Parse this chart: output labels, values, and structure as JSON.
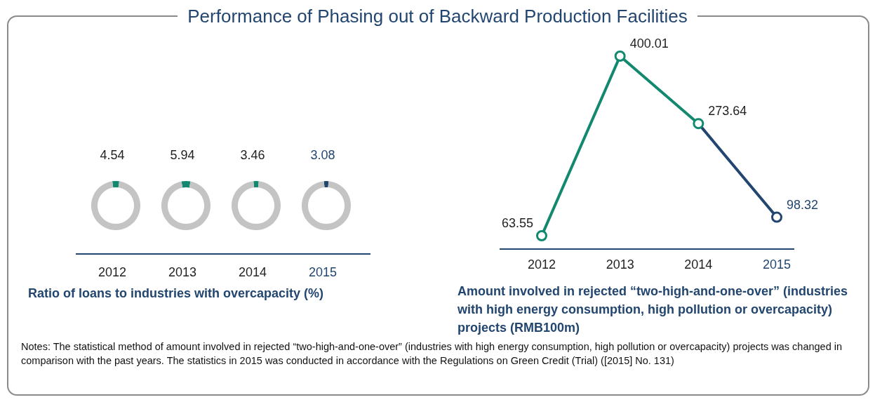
{
  "chart_data": [
    {
      "type": "other",
      "title": "Performance of Phasing out of Backward Production Facilities",
      "annotations": [
        "Ratio of loans to industries with overcapacity (%)",
        "Notes: The statistical method of amount involved in rejected “two-high-and-one-over” (industries with high energy consumption, high pollution or overcapacity) projects was changed in comparison with the past years. The statistics in 2015 was conducted in accordance with the Regulations on Green Credit (Trial) ([2015] No. 131)"
      ]
    },
    {
      "type": "donut",
      "categories": [
        null,
        null
      ],
      "values": [
        4.54,
        95.46
      ],
      "colors": [
        "#12896f",
        "#c4c4c4"
      ],
      "value_labels": [
        "4.54",
        null
      ],
      "xlabel": "2012"
    },
    {
      "type": "donut",
      "categories": [
        null,
        null
      ],
      "values": [
        5.94,
        94.06
      ],
      "colors": [
        "#12896f",
        "#c4c4c4"
      ],
      "value_labels": [
        "5.94",
        null
      ],
      "xlabel": "2013"
    },
    {
      "type": "donut",
      "categories": [
        null,
        null
      ],
      "values": [
        3.46,
        96.54
      ],
      "colors": [
        "#12896f",
        "#c4c4c4"
      ],
      "value_labels": [
        "3.46",
        null
      ],
      "xlabel": "2014"
    },
    {
      "type": "donut",
      "categories": [
        null,
        null
      ],
      "values": [
        3.08,
        96.92
      ],
      "colors": [
        "#22466f",
        "#c4c4c4"
      ],
      "value_labels": [
        "3.08",
        null
      ],
      "xlabel": "2015"
    },
    {
      "type": "line",
      "categories": [
        "2012",
        "2013",
        "2014",
        "2015"
      ],
      "values": [
        63.55,
        400.01,
        273.64,
        98.32
      ],
      "colors": [
        "#12896f",
        "#12896f",
        "#12896f",
        "#22466f"
      ],
      "data_labels": true,
      "marker": "circle",
      "xlabel": "Amount involved in rejected “two-high-and-one-over” (industries with high energy consumption, high pollution or overcapacity) projects (RMB100m)"
    }
  ]
}
